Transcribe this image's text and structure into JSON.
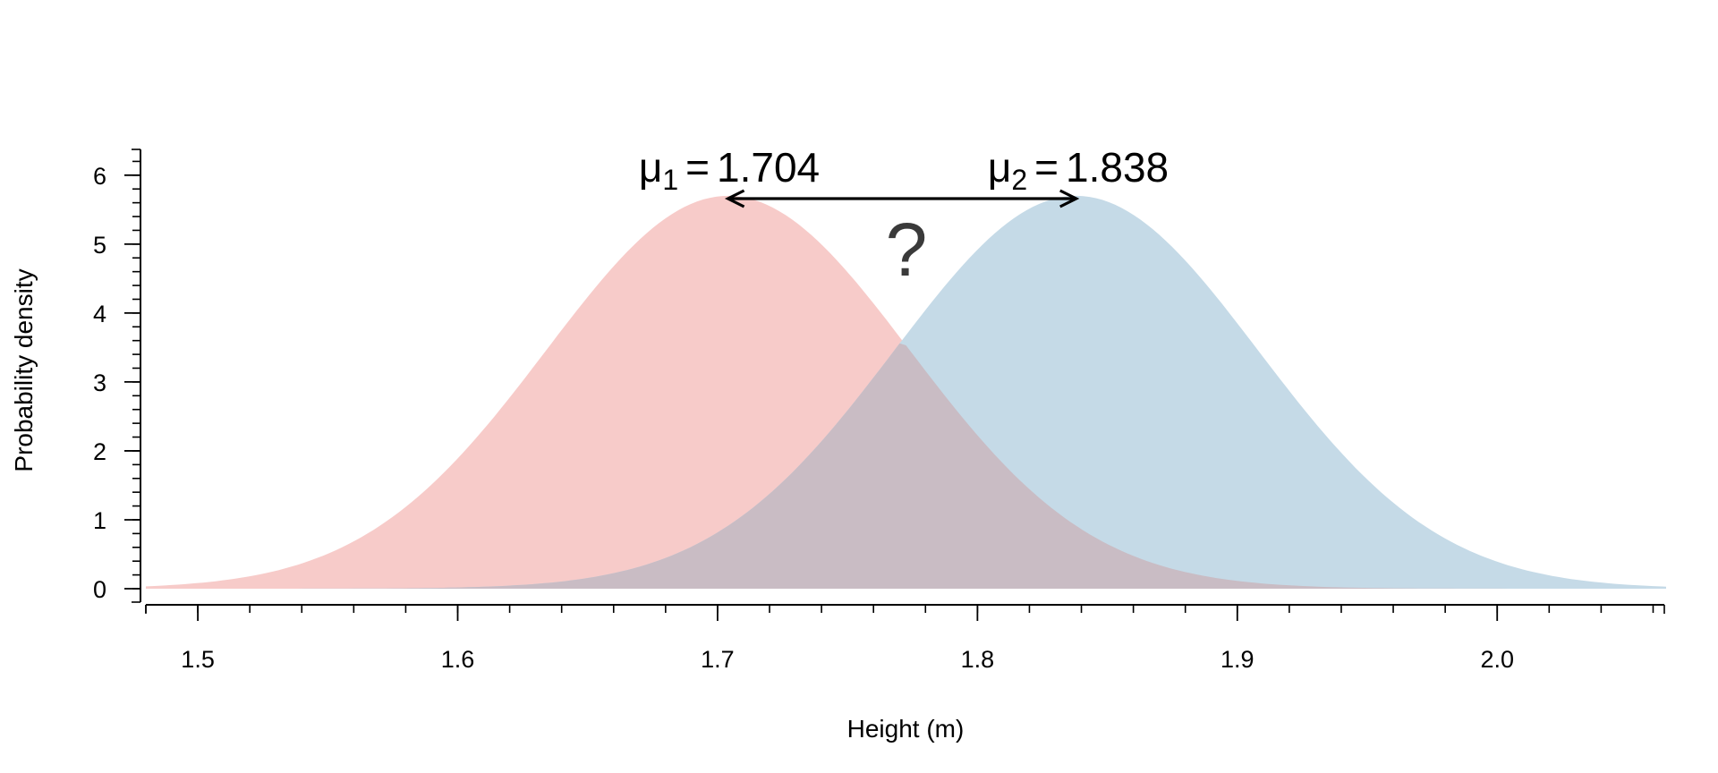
{
  "chart_data": {
    "type": "area",
    "xlabel": "Height (m)",
    "ylabel": "Probability density",
    "xlim": [
      1.48,
      2.065
    ],
    "ylim": [
      0,
      6.4
    ],
    "x_ticks": [
      1.5,
      1.6,
      1.7,
      1.8,
      1.9,
      2.0
    ],
    "x_tick_labels": [
      "1.5",
      "1.6",
      "1.7",
      "1.8",
      "1.9",
      "2.0"
    ],
    "y_ticks": [
      0,
      1,
      2,
      3,
      4,
      5,
      6
    ],
    "y_tick_labels": [
      "0",
      "1",
      "2",
      "3",
      "4",
      "5",
      "6"
    ],
    "grid": false,
    "series": [
      {
        "distribution": "normal",
        "mean": 1.704,
        "sd": 0.07,
        "peak_density": 5.7,
        "color": "#f7cbc9"
      },
      {
        "distribution": "normal",
        "mean": 1.838,
        "sd": 0.07,
        "peak_density": 5.7,
        "color": "#c5dae7"
      }
    ],
    "overlap_color": "#c9bcc4",
    "annotations": {
      "mu1": {
        "symbol": "μ",
        "subscript": "1",
        "equals": "=",
        "value": "1.704"
      },
      "mu2": {
        "symbol": "μ",
        "subscript": "2",
        "equals": "=",
        "value": "1.838"
      },
      "question": "?"
    }
  }
}
